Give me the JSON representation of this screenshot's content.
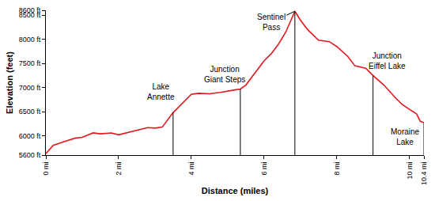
{
  "chart_data": {
    "type": "line",
    "x_label": "Distance (miles)",
    "y_label": "Elevation (feet)",
    "x": [
      0,
      0.2,
      0.5,
      0.8,
      1.0,
      1.3,
      1.5,
      1.8,
      2.0,
      2.3,
      2.5,
      2.8,
      3.0,
      3.2,
      3.5,
      3.8,
      4.0,
      4.2,
      4.5,
      4.8,
      5.0,
      5.2,
      5.35,
      5.5,
      5.8,
      6.0,
      6.2,
      6.4,
      6.6,
      6.85,
      7.0,
      7.2,
      7.5,
      7.8,
      8.0,
      8.3,
      8.5,
      8.8,
      9.0,
      9.3,
      9.6,
      9.8,
      10.0,
      10.2,
      10.3,
      10.4
    ],
    "values": [
      5630,
      5800,
      5880,
      5950,
      5970,
      6060,
      6040,
      6060,
      6020,
      6080,
      6120,
      6170,
      6160,
      6180,
      6480,
      6700,
      6860,
      6880,
      6870,
      6900,
      6920,
      6950,
      6970,
      7050,
      7350,
      7550,
      7700,
      7900,
      8150,
      8580,
      8400,
      8200,
      7980,
      7950,
      7850,
      7650,
      7450,
      7400,
      7250,
      7050,
      6800,
      6650,
      6550,
      6450,
      6300,
      6270
    ],
    "color": "#e3171e",
    "xlim": [
      0,
      10.4
    ],
    "xticks": [
      {
        "value": 0,
        "label": "0 mi"
      },
      {
        "value": 2,
        "label": "2 mi"
      },
      {
        "value": 4,
        "label": "4 mi"
      },
      {
        "value": 6,
        "label": "6 mi"
      },
      {
        "value": 8,
        "label": "8 mi"
      },
      {
        "value": 10,
        "label": "10 mi"
      },
      {
        "value": 10.4,
        "label": "10.4 mi"
      }
    ],
    "ylim": [
      5600,
      8600
    ],
    "yticks": [
      {
        "value": 5600,
        "label": "5600 ft"
      },
      {
        "value": 6000,
        "label": "6000 ft"
      },
      {
        "value": 6500,
        "label": "6500 ft"
      },
      {
        "value": 7000,
        "label": "7000 ft"
      },
      {
        "value": 7500,
        "label": "7500 ft"
      },
      {
        "value": 8000,
        "label": "8000 ft"
      },
      {
        "value": 8500,
        "label": "8500 ft"
      },
      {
        "value": 8600,
        "label": "8600 ft"
      }
    ],
    "grid": false,
    "annotations": [
      {
        "text": "Lake Annette",
        "x": 3.5,
        "y": 6480
      },
      {
        "text": "Junction Giant Steps",
        "x": 5.35,
        "y": 6970
      },
      {
        "text": "Sentinel Pass",
        "x": 6.85,
        "y": 8580
      },
      {
        "text": "Junction Eiffel Lake",
        "x": 9.0,
        "y": 7250
      },
      {
        "text": "Moraine Lake",
        "x": 10.4,
        "y": 6270
      }
    ]
  }
}
